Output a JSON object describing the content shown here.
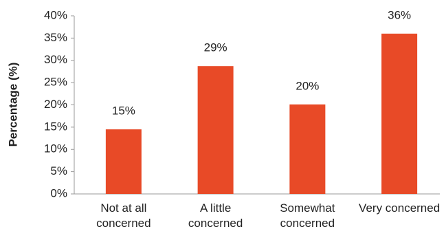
{
  "chart_data": {
    "type": "bar",
    "y_label": "Percentage (%)",
    "categories": [
      "Not at all concerned",
      "A little concerned",
      "Somewhat concerned",
      "Very concerned"
    ],
    "values": [
      14.5,
      28.7,
      20.1,
      36
    ],
    "value_labels": [
      "15%",
      "29%",
      "20%",
      "36%"
    ],
    "color": "#e84a27",
    "ylim": [
      0,
      40
    ],
    "yticks": [
      {
        "value": 0,
        "label": "0%"
      },
      {
        "value": 5,
        "label": "5%"
      },
      {
        "value": 10,
        "label": "10%"
      },
      {
        "value": 15,
        "label": "15%"
      },
      {
        "value": 20,
        "label": "20%"
      },
      {
        "value": 25,
        "label": "25%"
      },
      {
        "value": 30,
        "label": "30%"
      },
      {
        "value": 35,
        "label": "35%"
      },
      {
        "value": 40,
        "label": "40%"
      }
    ]
  }
}
